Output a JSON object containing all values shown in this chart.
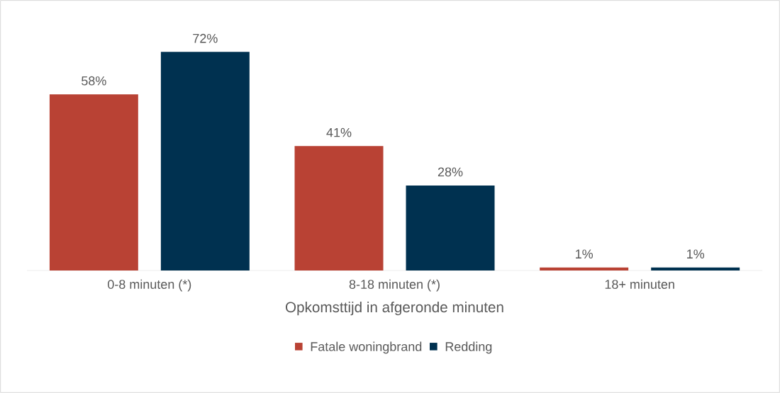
{
  "chart_data": {
    "type": "bar",
    "xlabel": "Opkomsttijd in afgeronde minuten",
    "categories": [
      "0-8 minuten (*)",
      "8-18 minuten (*)",
      "18+ minuten"
    ],
    "legend": "bottom",
    "series": [
      {
        "name": "Fatale woningbrand",
        "color": "#b94234",
        "values": [
          58,
          41,
          1
        ],
        "value_labels": [
          "58%",
          "41%",
          "1%"
        ]
      },
      {
        "name": "Redding",
        "color": "#003150",
        "values": [
          72,
          28,
          1
        ],
        "value_labels": [
          "72%",
          "28%",
          "1%"
        ]
      }
    ]
  }
}
